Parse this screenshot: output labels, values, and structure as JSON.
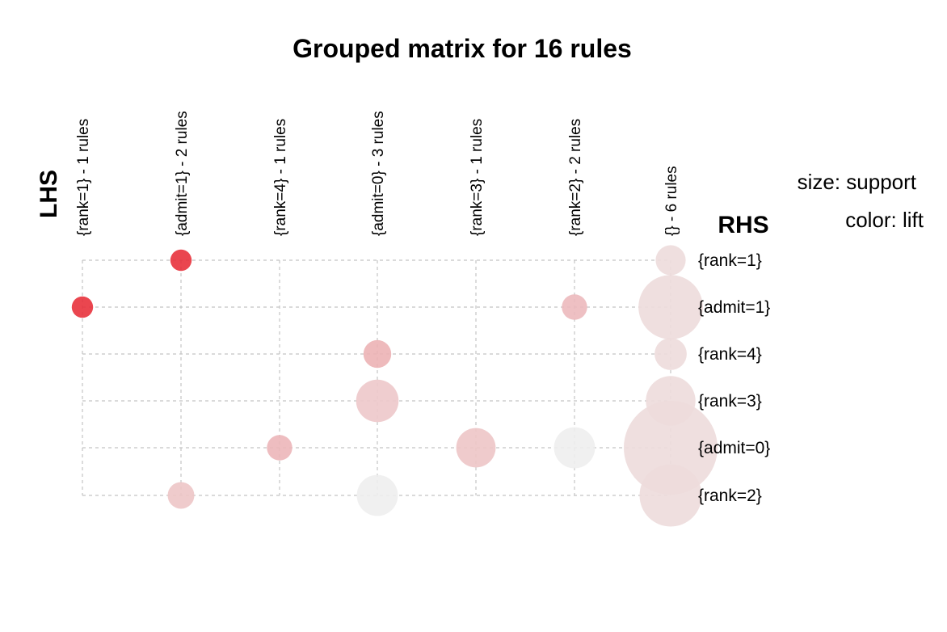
{
  "chart_data": {
    "type": "scatter",
    "title": "Grouped matrix for 16 rules",
    "xlabel": "LHS",
    "ylabel": "RHS",
    "legend": {
      "size": "size: support",
      "color": "color: lift"
    },
    "columns": [
      "{rank=1} - 1 rules",
      "{admit=1} - 2 rules",
      "{rank=4} - 1 rules",
      "{admit=0} - 3 rules",
      "{rank=3} - 1 rules",
      "{rank=2} - 2 rules",
      "{} - 6 rules"
    ],
    "rows": [
      "{rank=1}",
      "{admit=1}",
      "{rank=4}",
      "{rank=3}",
      "{admit=0}",
      "{rank=2}"
    ],
    "color_scale": {
      "low": "#eeeeee",
      "high": "#e8323c"
    },
    "points": [
      {
        "col": 1,
        "row": 0,
        "support": 0.035,
        "lift": 1.0
      },
      {
        "col": 0,
        "row": 1,
        "support": 0.035,
        "lift": 1.0
      },
      {
        "col": 5,
        "row": 1,
        "support": 0.05,
        "lift": 0.28
      },
      {
        "col": 3,
        "row": 2,
        "support": 0.06,
        "lift": 0.32
      },
      {
        "col": 3,
        "row": 3,
        "support": 0.14,
        "lift": 0.2
      },
      {
        "col": 2,
        "row": 4,
        "support": 0.05,
        "lift": 0.3
      },
      {
        "col": 4,
        "row": 4,
        "support": 0.12,
        "lift": 0.22
      },
      {
        "col": 5,
        "row": 4,
        "support": 0.13,
        "lift": 0.0
      },
      {
        "col": 1,
        "row": 5,
        "support": 0.055,
        "lift": 0.22
      },
      {
        "col": 3,
        "row": 5,
        "support": 0.13,
        "lift": 0.0
      },
      {
        "col": 6,
        "row": 0,
        "support": 0.07,
        "lift": 0.1
      },
      {
        "col": 6,
        "row": 1,
        "support": 0.32,
        "lift": 0.1
      },
      {
        "col": 6,
        "row": 2,
        "support": 0.08,
        "lift": 0.1
      },
      {
        "col": 6,
        "row": 3,
        "support": 0.19,
        "lift": 0.1
      },
      {
        "col": 6,
        "row": 4,
        "support": 0.68,
        "lift": 0.1
      },
      {
        "col": 6,
        "row": 5,
        "support": 0.3,
        "lift": 0.1
      }
    ]
  }
}
